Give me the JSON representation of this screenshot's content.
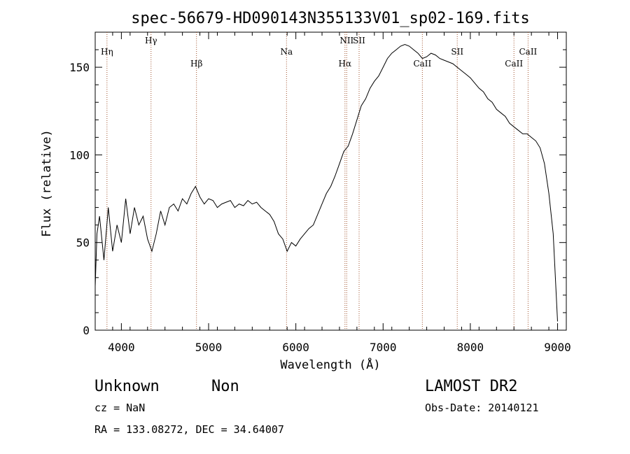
{
  "chart_data": {
    "type": "line",
    "title": "spec-56679-HD090143N355133V01_sp02-169.fits",
    "xlabel": "Wavelength (Å)",
    "ylabel": "Flux (relative)",
    "xlim": [
      3700,
      9100
    ],
    "ylim": [
      0,
      170
    ],
    "xticks": [
      4000,
      5000,
      6000,
      7000,
      8000,
      9000
    ],
    "yticks": [
      0,
      50,
      100,
      150
    ],
    "line_color": "#000000",
    "marker_color": "#a0522d",
    "lines": [
      {
        "label": "Hη",
        "x": 3835,
        "level": "low"
      },
      {
        "label": "Hγ",
        "x": 4340,
        "level": "high"
      },
      {
        "label": "Hβ",
        "x": 4861,
        "level": "mid"
      },
      {
        "label": "Na",
        "x": 5893,
        "level": "low"
      },
      {
        "label": "Hα",
        "x": 6563,
        "level": "mid"
      },
      {
        "label": "NII",
        "x": 6583,
        "level": "high"
      },
      {
        "label": "SII",
        "x": 6725,
        "level": "high"
      },
      {
        "label": "CaII",
        "x": 7450,
        "level": "mid"
      },
      {
        "label": "SII",
        "x": 7850,
        "level": "low"
      },
      {
        "label": "CaII",
        "x": 8500,
        "level": "mid"
      },
      {
        "label": "CaII",
        "x": 8662,
        "level": "low"
      }
    ],
    "series": [
      {
        "x": [
          3700,
          3720,
          3750,
          3800,
          3850,
          3900,
          3950,
          4000,
          4050,
          4100,
          4150,
          4200,
          4250,
          4300,
          4350,
          4400,
          4450,
          4500,
          4550,
          4600,
          4650,
          4700,
          4750,
          4800,
          4850,
          4900,
          4950,
          5000,
          5050,
          5100,
          5150,
          5200,
          5250,
          5300,
          5350,
          5400,
          5450,
          5500,
          5550,
          5600,
          5650,
          5700,
          5750,
          5800,
          5850,
          5900,
          5950,
          6000,
          6050,
          6100,
          6150,
          6200,
          6250,
          6300,
          6350,
          6400,
          6450,
          6500,
          6550,
          6600,
          6650,
          6700,
          6750,
          6800,
          6850,
          6900,
          6950,
          7000,
          7050,
          7100,
          7150,
          7200,
          7250,
          7300,
          7350,
          7400,
          7450,
          7500,
          7550,
          7600,
          7650,
          7700,
          7750,
          7800,
          7850,
          7900,
          7950,
          8000,
          8050,
          8100,
          8150,
          8200,
          8250,
          8300,
          8350,
          8400,
          8450,
          8500,
          8550,
          8600,
          8650,
          8700,
          8750,
          8800,
          8850,
          8900,
          8950,
          9000
        ],
        "y": [
          25,
          55,
          65,
          40,
          70,
          45,
          60,
          50,
          75,
          55,
          70,
          60,
          65,
          52,
          45,
          55,
          68,
          60,
          70,
          72,
          68,
          75,
          72,
          78,
          82,
          76,
          72,
          75,
          74,
          70,
          72,
          73,
          74,
          70,
          72,
          71,
          74,
          72,
          73,
          70,
          68,
          66,
          62,
          55,
          52,
          45,
          50,
          48,
          52,
          55,
          58,
          60,
          66,
          72,
          78,
          82,
          88,
          95,
          102,
          105,
          112,
          120,
          128,
          132,
          138,
          142,
          145,
          150,
          155,
          158,
          160,
          162,
          163,
          162,
          160,
          158,
          155,
          156,
          158,
          157,
          155,
          154,
          153,
          152,
          150,
          148,
          146,
          144,
          141,
          138,
          136,
          132,
          130,
          126,
          124,
          122,
          118,
          116,
          114,
          112,
          112,
          110,
          108,
          104,
          95,
          78,
          55,
          5
        ]
      }
    ]
  },
  "footer": {
    "object": "Unknown",
    "class": "Non",
    "cz": "cz = NaN",
    "coords": "RA = 133.08272, DEC =  34.64007",
    "survey": "LAMOST DR2",
    "obs_date": "Obs-Date: 20140121"
  }
}
